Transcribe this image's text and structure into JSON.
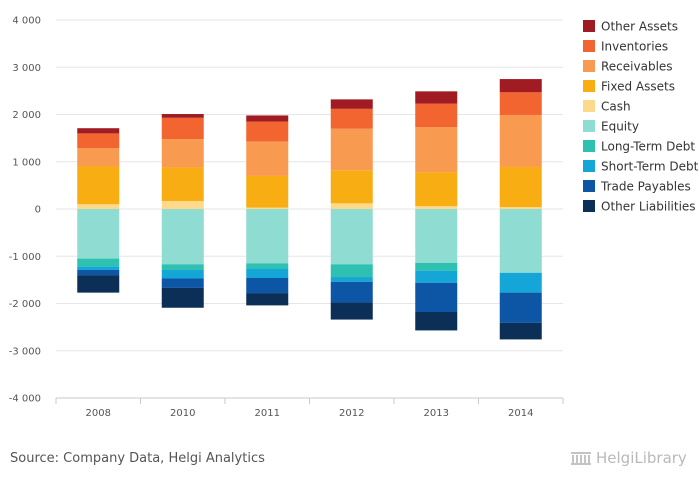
{
  "chart_data": {
    "type": "bar",
    "stacked": true,
    "categories": [
      "2008",
      "2010",
      "2011",
      "2012",
      "2013",
      "2014"
    ],
    "ylim": [
      -4000,
      4000
    ],
    "yticks": [
      4000,
      3000,
      2000,
      1000,
      0,
      -1000,
      -2000,
      -3000,
      -4000
    ],
    "ytick_labels": [
      "4 000",
      "3 000",
      "2 000",
      "1 000",
      "0",
      "-1 000",
      "-2 000",
      "-3 000",
      "-4 000"
    ],
    "grid": true,
    "legend_position": "right",
    "series": [
      {
        "name": "Other Assets",
        "color": "#a01c22",
        "values": [
          110,
          80,
          130,
          200,
          260,
          280
        ]
      },
      {
        "name": "Inventories",
        "color": "#f26531",
        "values": [
          310,
          450,
          420,
          420,
          500,
          480
        ]
      },
      {
        "name": "Receivables",
        "color": "#f99a51",
        "values": [
          390,
          600,
          730,
          880,
          950,
          1100
        ]
      },
      {
        "name": "Fixed Assets",
        "color": "#f8ad12",
        "values": [
          800,
          710,
          670,
          700,
          720,
          850
        ]
      },
      {
        "name": "Cash",
        "color": "#fdd98b",
        "values": [
          100,
          170,
          30,
          120,
          60,
          40
        ]
      },
      {
        "name": "Equity",
        "color": "#8fdcd3",
        "values": [
          -1050,
          -1170,
          -1150,
          -1170,
          -1140,
          -1350
        ]
      },
      {
        "name": "Long-Term Debt",
        "color": "#2ec0b0",
        "values": [
          -170,
          -120,
          -120,
          -270,
          -170,
          0
        ]
      },
      {
        "name": "Short-Term Debt",
        "color": "#14a6d6",
        "values": [
          -70,
          -180,
          -190,
          -100,
          -250,
          -420
        ]
      },
      {
        "name": "Trade Payables",
        "color": "#0d56a6",
        "values": [
          -110,
          -200,
          -320,
          -440,
          -620,
          -640
        ]
      },
      {
        "name": "Other Liabilities",
        "color": "#0b2f57",
        "values": [
          -370,
          -420,
          -260,
          -360,
          -390,
          -350
        ]
      }
    ]
  },
  "footer": {
    "source": "Source: Company Data, Helgi Analytics",
    "logo_text": "HelgiLibrary"
  }
}
